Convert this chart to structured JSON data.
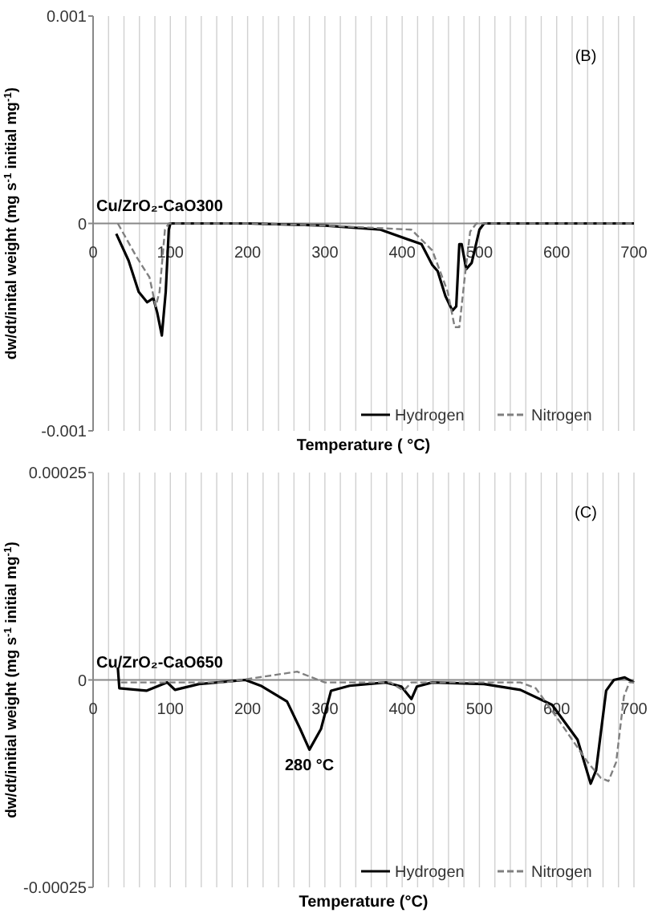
{
  "chart_data": [
    {
      "type": "line",
      "xlabel": "Temperature ( °C)",
      "ylabel": "dw/dt/inital  weight (mg s$^{-1}$ initial mg$^{-1}$)",
      "xlim": [
        0,
        700
      ],
      "ylim": [
        -0.001,
        0.001
      ],
      "yticks": [
        -0.001,
        0,
        0.001
      ],
      "xticks": [
        0,
        {
          "value": 20,
          "label": null
        },
        {
          "value": 40,
          "label": null
        },
        {
          "value": 60,
          "label": null
        },
        {
          "value": 80,
          "label": null
        },
        100,
        {
          "value": 120,
          "label": null
        },
        {
          "value": 140,
          "label": null
        },
        {
          "value": 160,
          "label": null
        },
        {
          "value": 180,
          "label": null
        },
        200,
        {
          "value": 220,
          "label": null
        },
        {
          "value": 240,
          "label": null
        },
        {
          "value": 260,
          "label": null
        },
        {
          "value": 280,
          "label": null
        },
        300,
        {
          "value": 320,
          "label": null
        },
        {
          "value": 340,
          "label": null
        },
        {
          "value": 360,
          "label": null
        },
        {
          "value": 380,
          "label": null
        },
        400,
        {
          "value": 420,
          "label": null
        },
        {
          "value": 440,
          "label": null
        },
        {
          "value": 460,
          "label": null
        },
        {
          "value": 480,
          "label": null
        },
        500,
        {
          "value": 520,
          "label": null
        },
        {
          "value": 540,
          "label": null
        },
        {
          "value": 560,
          "label": null
        },
        {
          "value": 580,
          "label": null
        },
        600,
        {
          "value": 620,
          "label": null
        },
        {
          "value": 640,
          "label": null
        },
        {
          "value": 660,
          "label": null
        },
        {
          "value": 680,
          "label": null
        },
        700
      ],
      "grid": "x",
      "legend": "bottom right",
      "marker": "none",
      "annotations": [
        "Cu/ZrO₂-CaO300",
        "(B)"
      ],
      "series": [
        {
          "name": "Hydrogen",
          "color": "#000000",
          "line_style": "solid",
          "x": [
            30,
            46,
            59,
            70,
            78,
            83,
            89,
            94,
            98,
            100,
            200,
            300,
            372,
            425,
            439,
            446,
            456,
            465,
            470,
            474,
            477,
            483,
            490,
            500,
            506,
            700
          ],
          "values": [
            -5e-05,
            -0.00018,
            -0.00033,
            -0.00038,
            -0.00036,
            -0.00043,
            -0.00054,
            -0.00033,
            -3e-05,
            0,
            0,
            -1e-05,
            -3e-05,
            -0.0001,
            -0.0002,
            -0.00023,
            -0.00035,
            -0.00042,
            -0.0004,
            -0.0001,
            -0.0001,
            -0.00022,
            -0.00019,
            -3e-05,
            0,
            0
          ]
        },
        {
          "name": "Nitrogen",
          "color": "#808080",
          "line_style": "dashed",
          "x": [
            32,
            56,
            73,
            81,
            86,
            93,
            98,
            200,
            300,
            412,
            439,
            459,
            468,
            474,
            481,
            488,
            496,
            700
          ],
          "values": [
            0,
            -0.00016,
            -0.00026,
            -0.0004,
            -0.00033,
            -3e-05,
            0,
            0,
            -1e-05,
            -3e-05,
            -0.00013,
            -0.00033,
            -0.0005,
            -0.0005,
            -0.00026,
            -4e-05,
            0,
            0
          ]
        }
      ]
    },
    {
      "type": "line",
      "xlabel": "Temperature (°C)",
      "ylabel": "dw/dt/initial weight (mg s$^{-1}$ initial mg$^{-1}$)",
      "xlim": [
        0,
        700
      ],
      "ylim": [
        -0.00025,
        0.00025
      ],
      "yticks": [
        -0.00025,
        0,
        0.00025
      ],
      "xticks": [
        0,
        {
          "value": 20,
          "label": null
        },
        {
          "value": 40,
          "label": null
        },
        {
          "value": 60,
          "label": null
        },
        {
          "value": 80,
          "label": null
        },
        100,
        {
          "value": 120,
          "label": null
        },
        {
          "value": 140,
          "label": null
        },
        {
          "value": 160,
          "label": null
        },
        {
          "value": 180,
          "label": null
        },
        200,
        {
          "value": 220,
          "label": null
        },
        {
          "value": 240,
          "label": null
        },
        {
          "value": 260,
          "label": null
        },
        {
          "value": 280,
          "label": null
        },
        300,
        {
          "value": 320,
          "label": null
        },
        {
          "value": 340,
          "label": null
        },
        {
          "value": 360,
          "label": null
        },
        {
          "value": 380,
          "label": null
        },
        400,
        {
          "value": 420,
          "label": null
        },
        {
          "value": 440,
          "label": null
        },
        {
          "value": 460,
          "label": null
        },
        {
          "value": 480,
          "label": null
        },
        500,
        {
          "value": 520,
          "label": null
        },
        {
          "value": 540,
          "label": null
        },
        {
          "value": 560,
          "label": null
        },
        {
          "value": 580,
          "label": null
        },
        600,
        {
          "value": 620,
          "label": null
        },
        {
          "value": 640,
          "label": null
        },
        {
          "value": 660,
          "label": null
        },
        {
          "value": 680,
          "label": null
        },
        700
      ],
      "grid": "x",
      "legend": "bottom right",
      "marker": "none",
      "annotations": [
        "Cu/ZrO₂-CaO650",
        "(C)",
        "280 °C"
      ],
      "series": [
        {
          "name": "Hydrogen",
          "color": "#000000",
          "line_style": "solid",
          "x": [
            32,
            34,
            69,
            96,
            106,
            137,
            197,
            217,
            251,
            268,
            280,
            295,
            308,
            332,
            379,
            399,
            412,
            419,
            439,
            506,
            553,
            594,
            627,
            644,
            651,
            664,
            674,
            688,
            700
          ],
          "values": [
            1.5e-05,
            -1e-05,
            -1.3e-05,
            -3e-06,
            -1.2e-05,
            -5e-06,
            0,
            -7e-06,
            -2.6e-05,
            -5.9e-05,
            -8.4e-05,
            -5.9e-05,
            -1.3e-05,
            -7e-06,
            -3e-06,
            -8e-06,
            -2.3e-05,
            -8e-06,
            -3e-06,
            -5e-06,
            -1.2e-05,
            -3e-05,
            -7.2e-05,
            -0.000125,
            -0.000109,
            -1.3e-05,
            0,
            3e-06,
            -3e-06
          ]
        },
        {
          "name": "Nitrogen",
          "color": "#808080",
          "line_style": "dashed",
          "x": [
            36,
            100,
            170,
            264,
            300,
            385,
            402,
            412,
            500,
            553,
            573,
            606,
            640,
            657,
            667,
            677,
            687,
            694,
            700
          ],
          "values": [
            -3e-06,
            -3e-06,
            -3e-06,
            1e-05,
            -3e-06,
            -3e-06,
            -1.3e-05,
            -3e-06,
            -3e-06,
            -3e-06,
            -1e-05,
            -5.3e-05,
            -9.9e-05,
            -0.000118,
            -0.000122,
            -9.9e-05,
            -2e-05,
            -3e-06,
            -3e-06
          ]
        }
      ]
    }
  ]
}
